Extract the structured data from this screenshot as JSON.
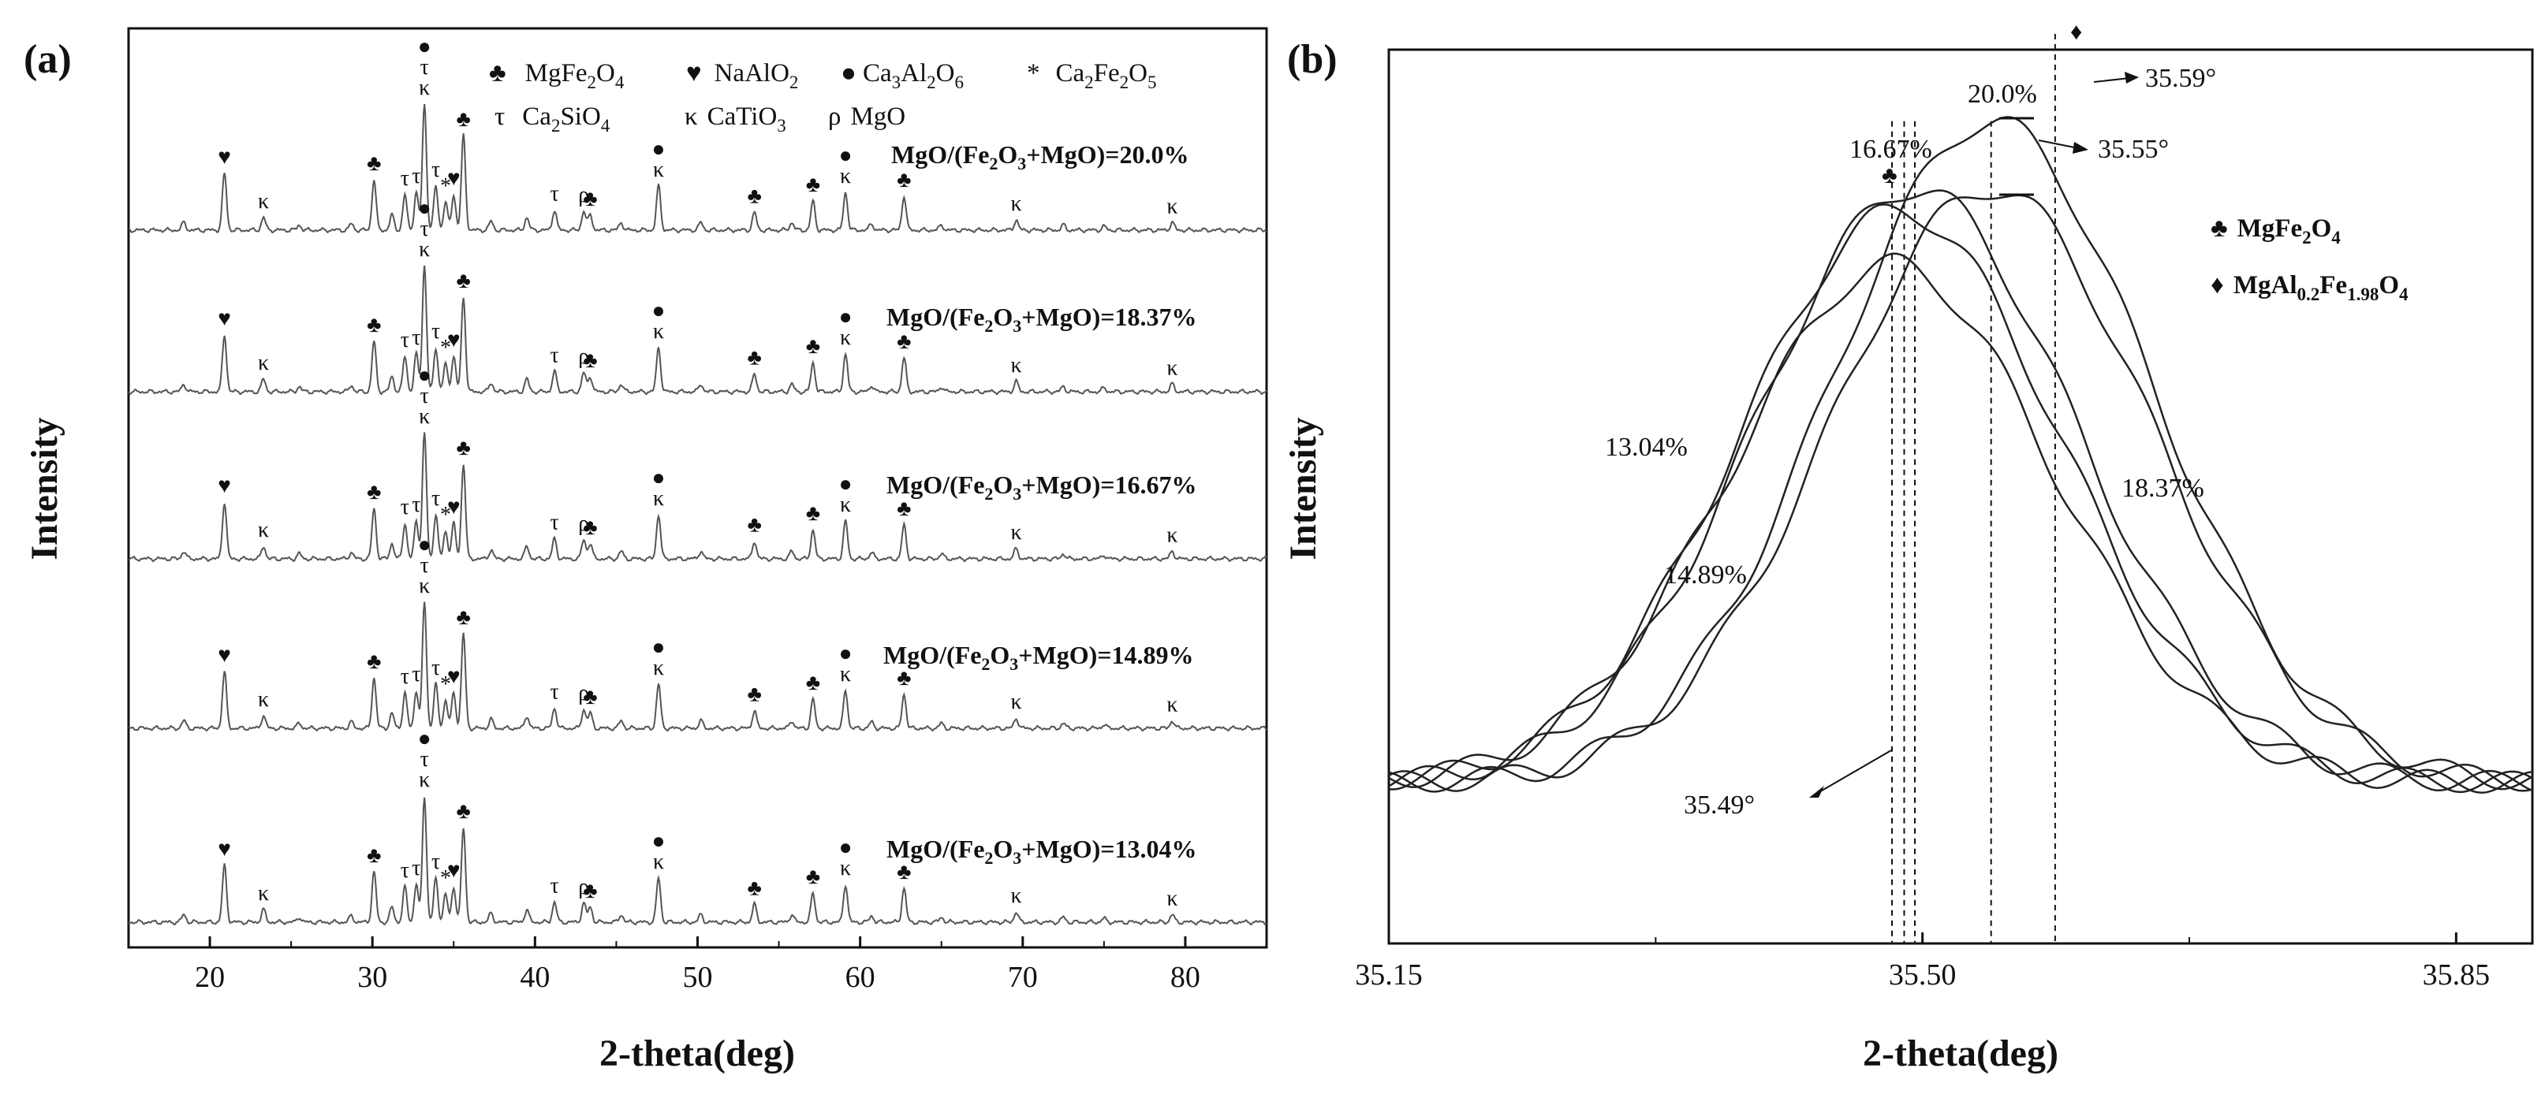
{
  "chart_data": [
    {
      "panel_label": "(a)",
      "type": "line",
      "title": "",
      "xlabel": "2-theta(deg)",
      "ylabel": "Intensity",
      "xlim": [
        15,
        85
      ],
      "xticks": [
        20,
        30,
        40,
        50,
        60,
        70,
        80
      ],
      "grid": false,
      "legend": [
        {
          "symbol": "♣",
          "name": "MgFe",
          "sub": "2",
          "tail": "O",
          "sub2": "4"
        },
        {
          "symbol": "♥",
          "name": "NaAlO",
          "sub": "2",
          "tail": "",
          "sub2": ""
        },
        {
          "symbol": "●",
          "name": "Ca",
          "sub": "3",
          "tail": "Al",
          "sub2": "2",
          "tail2": "O",
          "sub3": "6"
        },
        {
          "symbol": "*",
          "name": "Ca",
          "sub": "2",
          "tail": "Fe",
          "sub2": "2",
          "tail2": "O",
          "sub3": "5"
        },
        {
          "symbol": "τ",
          "name": "Ca",
          "sub": "2",
          "tail": "SiO",
          "sub2": "4"
        },
        {
          "symbol": "κ",
          "name": "CaTiO",
          "sub": "3",
          "tail": "",
          "sub2": ""
        },
        {
          "symbol": "ρ",
          "name": "MgO",
          "sub": "",
          "tail": "",
          "sub2": ""
        }
      ],
      "series_labels": [
        {
          "pre": "MgO/(Fe",
          "sub": "2",
          "post": "O",
          "sub2": "3",
          "tail": "+MgO)=20.0%"
        },
        {
          "pre": "MgO/(Fe",
          "sub": "2",
          "post": "O",
          "sub2": "3",
          "tail": "+MgO)=18.37%"
        },
        {
          "pre": "MgO/(Fe",
          "sub": "2",
          "post": "O",
          "sub2": "3",
          "tail": "+MgO)=16.67%"
        },
        {
          "pre": "MgO/(Fe",
          "sub": "2",
          "post": "O",
          "sub2": "3",
          "tail": "+MgO)=14.89%"
        },
        {
          "pre": "MgO/(Fe",
          "sub": "2",
          "post": "O",
          "sub2": "3",
          "tail": "+MgO)=13.04%"
        }
      ],
      "peaks": [
        {
          "x": 18.4,
          "h": 0.06
        },
        {
          "x": 20.9,
          "h": 0.45,
          "mark": "♥"
        },
        {
          "x": 23.3,
          "h": 0.1,
          "mark": "κ"
        },
        {
          "x": 25.5,
          "h": 0.04
        },
        {
          "x": 28.7,
          "h": 0.05
        },
        {
          "x": 30.1,
          "h": 0.4,
          "mark": "♣"
        },
        {
          "x": 31.2,
          "h": 0.12
        },
        {
          "x": 32.0,
          "h": 0.28,
          "mark": "τ"
        },
        {
          "x": 32.7,
          "h": 0.3,
          "mark": "τ"
        },
        {
          "x": 33.2,
          "h": 1.0,
          "mark": "●τκ"
        },
        {
          "x": 33.9,
          "h": 0.35,
          "mark": "τ"
        },
        {
          "x": 34.5,
          "h": 0.22,
          "mark": "*"
        },
        {
          "x": 35.0,
          "h": 0.28,
          "mark": "♥"
        },
        {
          "x": 35.6,
          "h": 0.75,
          "mark": "♣"
        },
        {
          "x": 37.3,
          "h": 0.07
        },
        {
          "x": 39.5,
          "h": 0.1
        },
        {
          "x": 41.2,
          "h": 0.16,
          "mark": "τ"
        },
        {
          "x": 43.0,
          "h": 0.15,
          "mark": "ρ"
        },
        {
          "x": 43.4,
          "h": 0.12,
          "mark": "♣"
        },
        {
          "x": 45.3,
          "h": 0.06
        },
        {
          "x": 47.6,
          "h": 0.35,
          "mark": "●κ"
        },
        {
          "x": 50.2,
          "h": 0.06
        },
        {
          "x": 53.5,
          "h": 0.14,
          "mark": "♣"
        },
        {
          "x": 55.8,
          "h": 0.06
        },
        {
          "x": 57.1,
          "h": 0.23,
          "mark": "♣"
        },
        {
          "x": 59.1,
          "h": 0.3,
          "mark": "●κ"
        },
        {
          "x": 60.7,
          "h": 0.05
        },
        {
          "x": 62.7,
          "h": 0.27,
          "mark": "♣"
        },
        {
          "x": 65.0,
          "h": 0.04
        },
        {
          "x": 69.6,
          "h": 0.08,
          "mark": "κ"
        },
        {
          "x": 72.5,
          "h": 0.04
        },
        {
          "x": 75.0,
          "h": 0.03
        },
        {
          "x": 79.2,
          "h": 0.06,
          "mark": "κ"
        }
      ]
    },
    {
      "panel_label": "(b)",
      "type": "line",
      "title": "",
      "xlabel": "2-theta(deg)",
      "ylabel": "Intensity",
      "xlim": [
        35.15,
        35.9
      ],
      "xticks": [
        "35.15",
        "35.50",
        "35.85"
      ],
      "grid": false,
      "legend": [
        {
          "symbol": "♣",
          "name": "MgFe",
          "sub": "2",
          "tail": "O",
          "sub2": "4"
        },
        {
          "symbol": "♦",
          "name": "MgAl",
          "sub": "0.2",
          "tail": "Fe",
          "sub2": "1.98",
          "tail2": "O",
          "sub3": "4"
        }
      ],
      "series": [
        {
          "name": "13.04%",
          "center": 35.48,
          "peak": 0.76
        },
        {
          "name": "14.89%",
          "center": 35.485,
          "peak": 0.82
        },
        {
          "name": "16.67%",
          "center": 35.495,
          "peak": 0.845
        },
        {
          "name": "18.37%",
          "center": 35.545,
          "peak": 0.845
        },
        {
          "name": "20.0%",
          "center": 35.545,
          "peak": 0.92
        }
      ],
      "vlines": [
        35.48,
        35.488,
        35.495,
        35.545,
        35.587
      ],
      "annotations": [
        "35.59°",
        "35.55°",
        "35.49°"
      ],
      "marker_symbols": {
        "club": "♣",
        "diamond": "♦"
      }
    }
  ]
}
